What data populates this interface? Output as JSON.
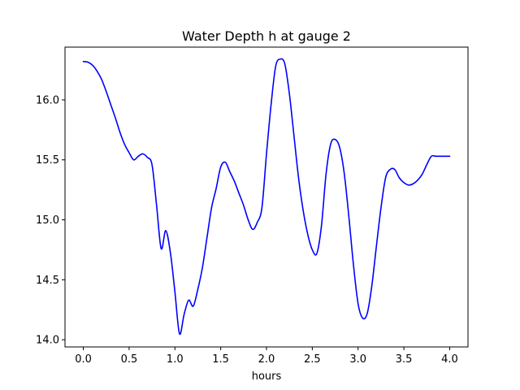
{
  "chart_data": {
    "type": "line",
    "title": "Water Depth h at gauge 2",
    "xlabel": "hours",
    "ylabel": "",
    "xlim": [
      -0.2,
      4.2
    ],
    "ylim": [
      13.94,
      16.44
    ],
    "grid": false,
    "legend": "none",
    "xticks": [
      0.0,
      0.5,
      1.0,
      1.5,
      2.0,
      2.5,
      3.0,
      3.5,
      4.0
    ],
    "xtick_labels": [
      "0.0",
      "0.5",
      "1.0",
      "1.5",
      "2.0",
      "2.5",
      "3.0",
      "3.5",
      "4.0"
    ],
    "yticks": [
      14.0,
      14.5,
      15.0,
      15.5,
      16.0
    ],
    "ytick_labels": [
      "14.0",
      "14.5",
      "15.0",
      "15.5",
      "16.0"
    ],
    "series": [
      {
        "color": "#0000ff",
        "x": [
          0.0,
          0.05,
          0.1,
          0.15,
          0.2,
          0.25,
          0.3,
          0.35,
          0.4,
          0.45,
          0.5,
          0.55,
          0.6,
          0.65,
          0.7,
          0.75,
          0.8,
          0.85,
          0.9,
          0.95,
          1.0,
          1.05,
          1.1,
          1.15,
          1.2,
          1.25,
          1.3,
          1.35,
          1.4,
          1.45,
          1.5,
          1.55,
          1.6,
          1.65,
          1.7,
          1.75,
          1.8,
          1.85,
          1.9,
          1.95,
          2.0,
          2.05,
          2.1,
          2.15,
          2.2,
          2.25,
          2.3,
          2.35,
          2.4,
          2.45,
          2.5,
          2.55,
          2.6,
          2.65,
          2.7,
          2.75,
          2.8,
          2.85,
          2.9,
          2.95,
          3.0,
          3.05,
          3.1,
          3.15,
          3.2,
          3.25,
          3.3,
          3.35,
          3.4,
          3.45,
          3.5,
          3.55,
          3.6,
          3.65,
          3.7,
          3.75,
          3.8,
          3.85,
          3.9,
          3.95,
          4.0
        ],
        "values": [
          16.32,
          16.315,
          16.29,
          16.24,
          16.17,
          16.07,
          15.96,
          15.85,
          15.73,
          15.63,
          15.56,
          15.5,
          15.53,
          15.55,
          15.52,
          15.46,
          15.12,
          14.76,
          14.91,
          14.73,
          14.4,
          14.05,
          14.21,
          14.33,
          14.28,
          14.42,
          14.6,
          14.85,
          15.1,
          15.26,
          15.44,
          15.48,
          15.4,
          15.32,
          15.22,
          15.12,
          15.0,
          14.92,
          14.98,
          15.1,
          15.55,
          15.96,
          16.28,
          16.34,
          16.3,
          16.05,
          15.7,
          15.35,
          15.08,
          14.88,
          14.75,
          14.72,
          14.95,
          15.38,
          15.63,
          15.67,
          15.6,
          15.38,
          15.02,
          14.62,
          14.3,
          14.18,
          14.22,
          14.45,
          14.78,
          15.1,
          15.35,
          15.42,
          15.42,
          15.35,
          15.31,
          15.29,
          15.3,
          15.33,
          15.38,
          15.46,
          15.53,
          15.53,
          15.53,
          15.53,
          15.53
        ]
      }
    ]
  }
}
